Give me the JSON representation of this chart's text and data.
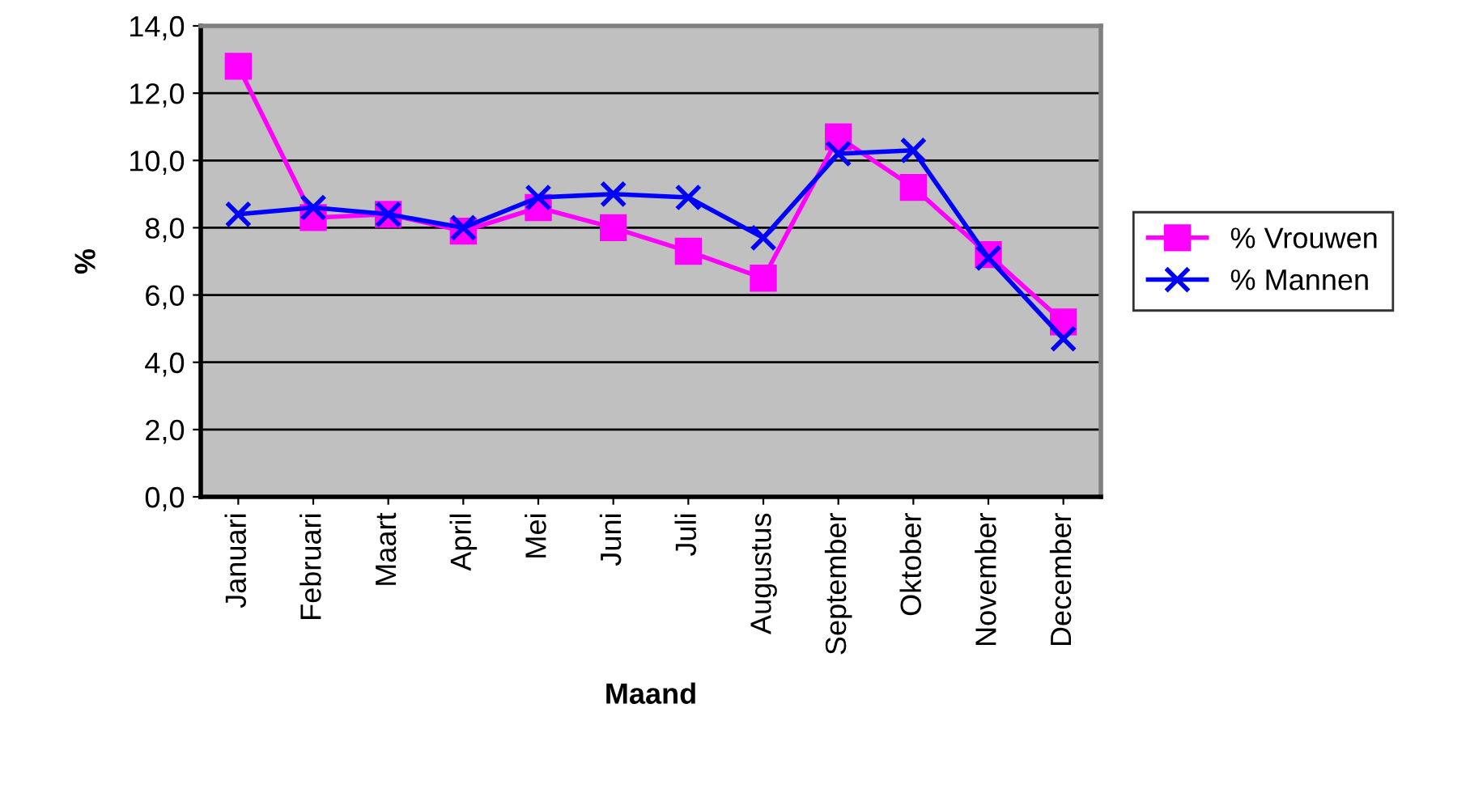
{
  "chart_data": {
    "type": "line",
    "xlabel": "Maand",
    "ylabel": "%",
    "categories": [
      "Januari",
      "Februari",
      "Maart",
      "April",
      "Mei",
      "Juni",
      "Juli",
      "Augustus",
      "September",
      "Oktober",
      "November",
      "December"
    ],
    "series": [
      {
        "name": "% Vrouwen",
        "color": "#ff00ff",
        "marker": "square",
        "values": [
          12.8,
          8.3,
          8.4,
          7.9,
          8.6,
          8.0,
          7.3,
          6.5,
          10.7,
          9.2,
          7.2,
          5.2
        ]
      },
      {
        "name": "% Mannen",
        "color": "#0000ff",
        "marker": "cross",
        "values": [
          8.4,
          8.6,
          8.4,
          8.0,
          8.9,
          9.0,
          8.9,
          7.7,
          10.2,
          10.3,
          7.1,
          4.7
        ]
      }
    ],
    "ylim": [
      0,
      14
    ],
    "yticks": [
      {
        "value": 0,
        "label": "0,0"
      },
      {
        "value": 2,
        "label": "2,0"
      },
      {
        "value": 4,
        "label": "4,0"
      },
      {
        "value": 6,
        "label": "6,0"
      },
      {
        "value": 8,
        "label": "8,0"
      },
      {
        "value": 10,
        "label": "10,0"
      },
      {
        "value": 12,
        "label": "12,0"
      },
      {
        "value": 14,
        "label": "14,0"
      }
    ],
    "grid": "y",
    "legend": "right"
  }
}
